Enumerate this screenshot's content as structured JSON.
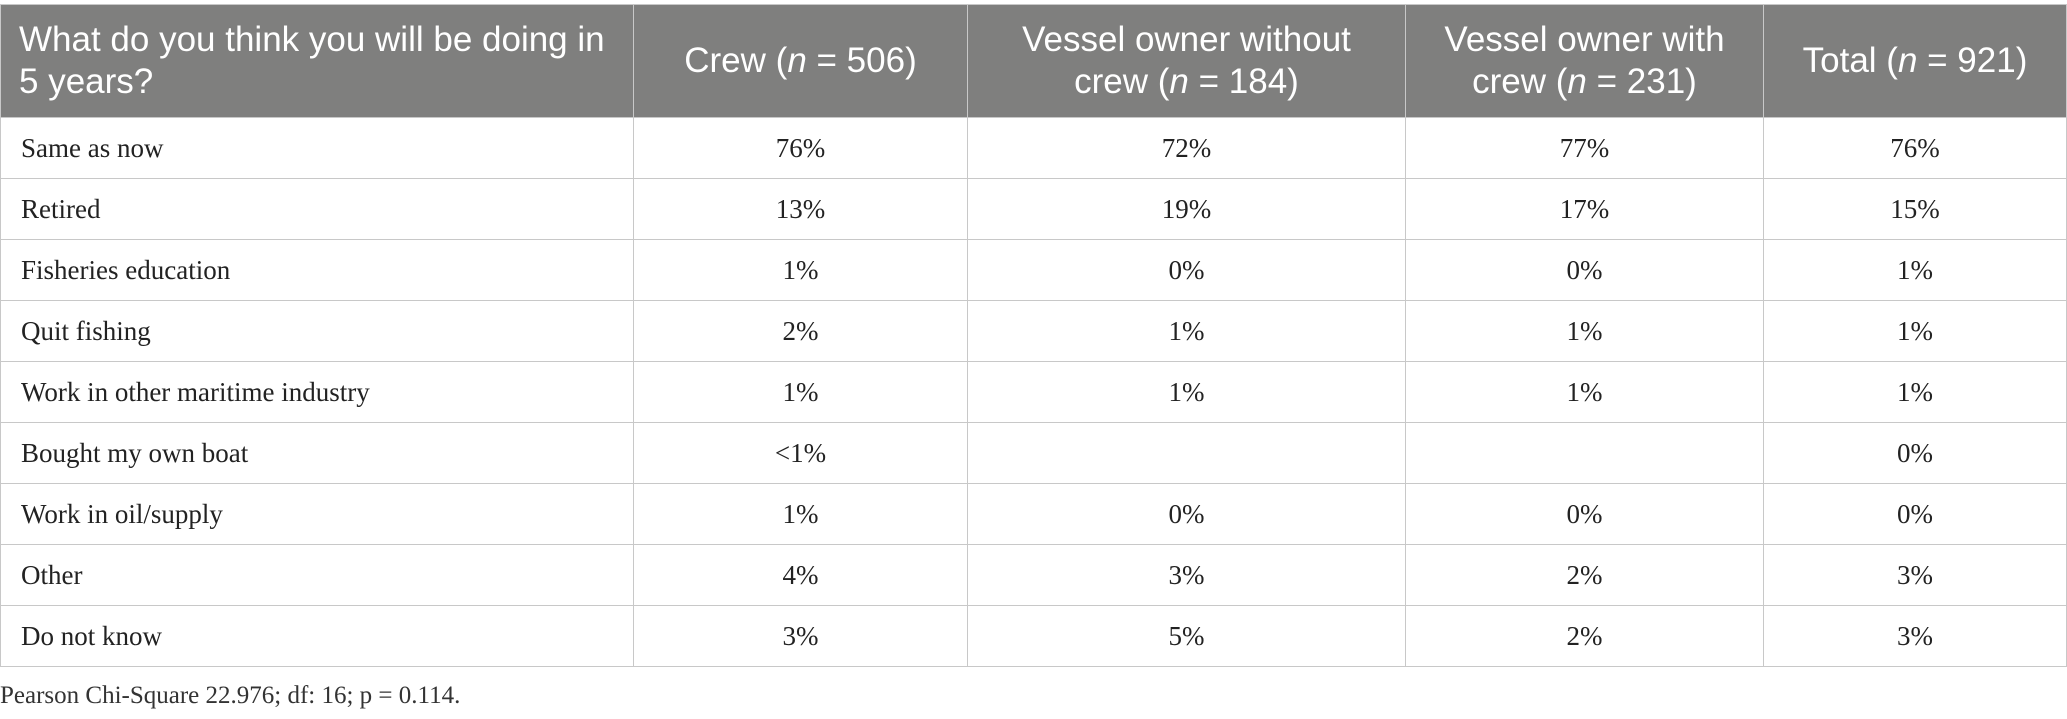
{
  "table": {
    "headers": [
      {
        "pre": "What do you think you will be doing in 5 years?",
        "n_label": "",
        "post": ""
      },
      {
        "pre": "Crew (",
        "n_label": "n",
        "post": " = 506)"
      },
      {
        "pre": "Vessel owner without crew (",
        "n_label": "n",
        "post": " = 184)"
      },
      {
        "pre": "Vessel owner with crew (",
        "n_label": "n",
        "post": " = 231)"
      },
      {
        "pre": "Total (",
        "n_label": "n",
        "post": " = 921)"
      }
    ],
    "rows": [
      {
        "label": "Same as now",
        "crew": "76%",
        "owner_without": "72%",
        "owner_with": "77%",
        "total": "76%"
      },
      {
        "label": "Retired",
        "crew": "13%",
        "owner_without": "19%",
        "owner_with": "17%",
        "total": "15%"
      },
      {
        "label": "Fisheries education",
        "crew": "1%",
        "owner_without": "0%",
        "owner_with": "0%",
        "total": "1%"
      },
      {
        "label": "Quit fishing",
        "crew": "2%",
        "owner_without": "1%",
        "owner_with": "1%",
        "total": "1%"
      },
      {
        "label": "Work in other maritime industry",
        "crew": "1%",
        "owner_without": "1%",
        "owner_with": "1%",
        "total": "1%"
      },
      {
        "label": "Bought my own boat",
        "crew": "<1%",
        "owner_without": "",
        "owner_with": "",
        "total": "0%"
      },
      {
        "label": "Work in oil/supply",
        "crew": "1%",
        "owner_without": "0%",
        "owner_with": "0%",
        "total": "0%"
      },
      {
        "label": "Other",
        "crew": "4%",
        "owner_without": "3%",
        "owner_with": "2%",
        "total": "3%"
      },
      {
        "label": "Do not know",
        "crew": "3%",
        "owner_without": "5%",
        "owner_with": "2%",
        "total": "3%"
      }
    ]
  },
  "footnote": "Pearson Chi-Square 22.976; df: 16; p = 0.114."
}
